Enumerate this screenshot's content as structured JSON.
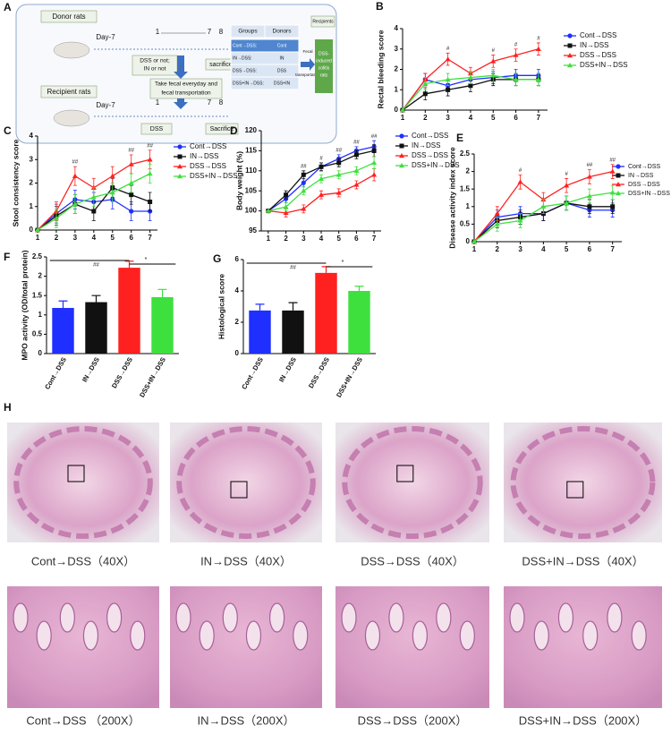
{
  "diagram": {
    "label": "A",
    "donor": "Donor rats",
    "recipient": "Recipient rats",
    "donor_days": [
      "Day-7",
      "1",
      "7",
      "8"
    ],
    "recipient_days": [
      "Day-7",
      "1",
      "7",
      "8"
    ],
    "donor_treatment": [
      "DSS or not;",
      "IN or not"
    ],
    "donor_end": "sacrifice",
    "transfer": [
      "Take fecal everyday and",
      "fecal transportation"
    ],
    "recipient_treatment": "DSS",
    "recipient_end": "Sacrifice",
    "table": {
      "header": [
        "Groups",
        "Donors"
      ],
      "rows": [
        [
          "Cont→DSS:",
          "Cont"
        ],
        [
          "IN→DSS:",
          "IN"
        ],
        [
          "DSS→DSS:",
          "DSS"
        ],
        [
          "DSS+IN→DSS:",
          "DSS+IN"
        ]
      ]
    },
    "arrow_label": [
      "Fecal",
      "transportation"
    ],
    "recipients": "Recipients",
    "recipient_group": [
      "DSS-",
      "induced",
      "colitis",
      "rats"
    ]
  },
  "chart_data": [
    {
      "type": "line",
      "label": "B",
      "y_label": "Rectal bleeding score",
      "x": [
        1,
        2,
        3,
        4,
        5,
        6,
        7
      ],
      "xlim": [
        1,
        7.4
      ],
      "xticks": [
        1,
        2,
        3,
        4,
        5,
        6,
        7
      ],
      "ylim": [
        0,
        4
      ],
      "yticks": [
        0,
        1,
        2,
        3,
        4
      ],
      "series": [
        {
          "name": "Cont→DSS",
          "color": "#1f2fff",
          "marker": "circle",
          "values": [
            0,
            1.5,
            1.2,
            1.5,
            1.6,
            1.7,
            1.7
          ],
          "errors": [
            0,
            0.3,
            0.3,
            0.3,
            0.3,
            0.3,
            0.3
          ]
        },
        {
          "name": "IN→DSS",
          "color": "#111111",
          "marker": "square",
          "values": [
            0,
            0.8,
            1.0,
            1.2,
            1.5,
            1.5,
            1.5
          ],
          "errors": [
            0,
            0.3,
            0.3,
            0.3,
            0.3,
            0.3,
            0.3
          ]
        },
        {
          "name": "DSS→DSS",
          "color": "#ff2020",
          "marker": "triangle",
          "values": [
            0,
            1.5,
            2.5,
            1.8,
            2.4,
            2.7,
            3.0
          ],
          "errors": [
            0,
            0.3,
            0.3,
            0.3,
            0.3,
            0.3,
            0.3
          ]
        },
        {
          "name": "DSS+IN→DSS",
          "color": "#3ee03e",
          "marker": "triangle",
          "values": [
            0,
            1.3,
            1.5,
            1.6,
            1.7,
            1.5,
            1.5
          ],
          "errors": [
            0,
            0.3,
            0.3,
            0.3,
            0.3,
            0.3,
            0.3
          ]
        }
      ],
      "annotations": [
        {
          "x": 3,
          "text": "#"
        },
        {
          "x": 5,
          "text": "#"
        },
        {
          "x": 6,
          "text": "#"
        },
        {
          "x": 7,
          "text": "#"
        }
      ]
    },
    {
      "type": "line",
      "label": "C",
      "y_label": "Stool consistency score",
      "x": [
        1,
        2,
        3,
        4,
        5,
        6,
        7
      ],
      "xlim": [
        1,
        7.4
      ],
      "xticks": [
        1,
        2,
        3,
        4,
        5,
        6,
        7
      ],
      "ylim": [
        0,
        4
      ],
      "yticks": [
        0,
        1,
        2,
        3,
        4
      ],
      "series": [
        {
          "name": "Cont→DSS",
          "color": "#1f2fff",
          "marker": "circle",
          "values": [
            0,
            0.7,
            1.3,
            1.2,
            1.3,
            0.8,
            0.8
          ],
          "errors": [
            0,
            0.4,
            0.4,
            0.4,
            0.4,
            0.4,
            0.4
          ]
        },
        {
          "name": "IN→DSS",
          "color": "#111111",
          "marker": "square",
          "values": [
            0,
            0.6,
            1.1,
            0.8,
            1.8,
            1.5,
            1.2
          ],
          "errors": [
            0,
            0.4,
            0.4,
            0.4,
            0.4,
            0.4,
            0.4
          ]
        },
        {
          "name": "DSS→DSS",
          "color": "#ff2020",
          "marker": "triangle",
          "values": [
            0,
            0.8,
            2.3,
            1.8,
            2.3,
            2.8,
            3.0
          ],
          "errors": [
            0,
            0.4,
            0.4,
            0.4,
            0.4,
            0.4,
            0.4
          ]
        },
        {
          "name": "DSS+IN→DSS",
          "color": "#3ee03e",
          "marker": "triangle",
          "values": [
            0,
            0.5,
            1.1,
            1.4,
            1.6,
            2.0,
            2.4
          ],
          "errors": [
            0,
            0.4,
            0.4,
            0.4,
            0.4,
            0.4,
            0.4
          ]
        }
      ],
      "annotations": [
        {
          "x": 3,
          "text": "##"
        },
        {
          "x": 6,
          "text": "##"
        },
        {
          "x": 7,
          "text": "##"
        }
      ]
    },
    {
      "type": "line",
      "label": "D",
      "y_label": "Body weight (%)",
      "x": [
        1,
        2,
        3,
        4,
        5,
        6,
        7
      ],
      "xlim": [
        0.6,
        7.4
      ],
      "xticks": [
        1,
        2,
        3,
        4,
        5,
        6,
        7
      ],
      "ylim": [
        95,
        120
      ],
      "yticks": [
        95,
        100,
        105,
        110,
        115,
        120
      ],
      "series": [
        {
          "name": "Cont→DSS",
          "color": "#1f2fff",
          "marker": "circle",
          "values": [
            100,
            103,
            107,
            111,
            113,
            115,
            116
          ],
          "errors": [
            0,
            1,
            1,
            1,
            1,
            1,
            1.5
          ]
        },
        {
          "name": "IN→DSS",
          "color": "#111111",
          "marker": "square",
          "values": [
            100,
            104,
            109,
            111,
            112,
            114,
            115
          ],
          "errors": [
            0,
            1,
            1,
            1,
            1,
            1,
            1.5
          ]
        },
        {
          "name": "DSS→DSS",
          "color": "#ff2020",
          "marker": "triangle",
          "values": [
            100,
            99.5,
            100.5,
            104,
            104.5,
            106.5,
            109
          ],
          "errors": [
            0,
            1,
            1,
            1,
            1,
            1,
            1.5
          ]
        },
        {
          "name": "DSS+IN→DSS",
          "color": "#3ee03e",
          "marker": "triangle",
          "values": [
            100,
            101,
            105,
            108,
            109,
            110,
            112
          ],
          "errors": [
            0,
            1,
            1,
            1,
            1,
            1,
            1.5
          ]
        }
      ],
      "annotations": [
        {
          "x": 3,
          "text": "##"
        },
        {
          "x": 4,
          "text": "#"
        },
        {
          "x": 5,
          "text": "##"
        },
        {
          "x": 6,
          "text": "##"
        },
        {
          "x": 7,
          "text": "##"
        }
      ]
    },
    {
      "type": "line",
      "label": "E",
      "y_label": "Disease activity index score",
      "x": [
        1,
        2,
        3,
        4,
        5,
        6,
        7
      ],
      "xlim": [
        1,
        7.4
      ],
      "xticks": [
        1,
        2,
        3,
        4,
        5,
        6,
        7
      ],
      "ylim": [
        0,
        2.5
      ],
      "yticks": [
        0,
        0.5,
        1,
        1.5,
        2,
        2.5
      ],
      "series": [
        {
          "name": "Cont→DSS",
          "color": "#1f2fff",
          "marker": "circle",
          "values": [
            0,
            0.7,
            0.8,
            0.8,
            1.1,
            0.9,
            0.9
          ],
          "errors": [
            0,
            0.2,
            0.2,
            0.2,
            0.2,
            0.2,
            0.2
          ]
        },
        {
          "name": "IN→DSS",
          "color": "#111111",
          "marker": "square",
          "values": [
            0,
            0.6,
            0.7,
            0.8,
            1.1,
            1.0,
            1.0
          ],
          "errors": [
            0,
            0.2,
            0.2,
            0.2,
            0.2,
            0.2,
            0.2
          ]
        },
        {
          "name": "DSS→DSS",
          "color": "#ff2020",
          "marker": "triangle",
          "values": [
            0,
            0.8,
            1.7,
            1.2,
            1.6,
            1.85,
            2.0
          ],
          "errors": [
            0,
            0.2,
            0.2,
            0.2,
            0.2,
            0.2,
            0.2
          ]
        },
        {
          "name": "DSS+IN→DSS",
          "color": "#3ee03e",
          "marker": "triangle",
          "values": [
            0,
            0.5,
            0.6,
            1.0,
            1.1,
            1.3,
            1.4
          ],
          "errors": [
            0,
            0.2,
            0.2,
            0.2,
            0.2,
            0.2,
            0.2
          ]
        }
      ],
      "annotations": [
        {
          "x": 3,
          "text": "#"
        },
        {
          "x": 5,
          "text": "#"
        },
        {
          "x": 6,
          "text": "##"
        },
        {
          "x": 7,
          "text": "##"
        }
      ]
    },
    {
      "type": "bar",
      "label": "F",
      "y_label": "MPO activity (OD/total protein)",
      "categories": [
        "Cont→DSS",
        "IN→DSS",
        "DSS→DSS",
        "DSS+IN→DSS"
      ],
      "values": [
        1.18,
        1.33,
        2.22,
        1.46
      ],
      "errors": [
        0.18,
        0.17,
        0.17,
        0.2
      ],
      "colors": [
        "#1f2fff",
        "#111111",
        "#ff2020",
        "#3ee03e"
      ],
      "ylim": [
        0,
        2.5
      ],
      "yticks": [
        0,
        0.5,
        1,
        1.5,
        2,
        2.5
      ],
      "annotations": [
        "##",
        "*"
      ]
    },
    {
      "type": "bar",
      "label": "G",
      "y_label": "Histological score",
      "categories": [
        "Cont→DSS",
        "IN→DSS",
        "DSS→DSS",
        "DSS+IN→DSS"
      ],
      "values": [
        2.75,
        2.75,
        5.15,
        4.0
      ],
      "errors": [
        0.4,
        0.5,
        0.4,
        0.3
      ],
      "colors": [
        "#1f2fff",
        "#111111",
        "#ff2020",
        "#3ee03e"
      ],
      "ylim": [
        0,
        6
      ],
      "yticks": [
        0,
        2,
        4,
        6
      ],
      "annotations": [
        "##",
        "*"
      ]
    }
  ],
  "images": {
    "label": "H",
    "row1": [
      "Cont→DSS（40X）",
      "IN→DSS（40X）",
      "DSS→DSS（40X）",
      "DSS+IN→DSS（40X）"
    ],
    "row2": [
      "Cont→DSS （200X）",
      "IN→DSS（200X）",
      "DSS→DSS（200X）",
      "DSS+IN→DSS（200X）"
    ]
  }
}
